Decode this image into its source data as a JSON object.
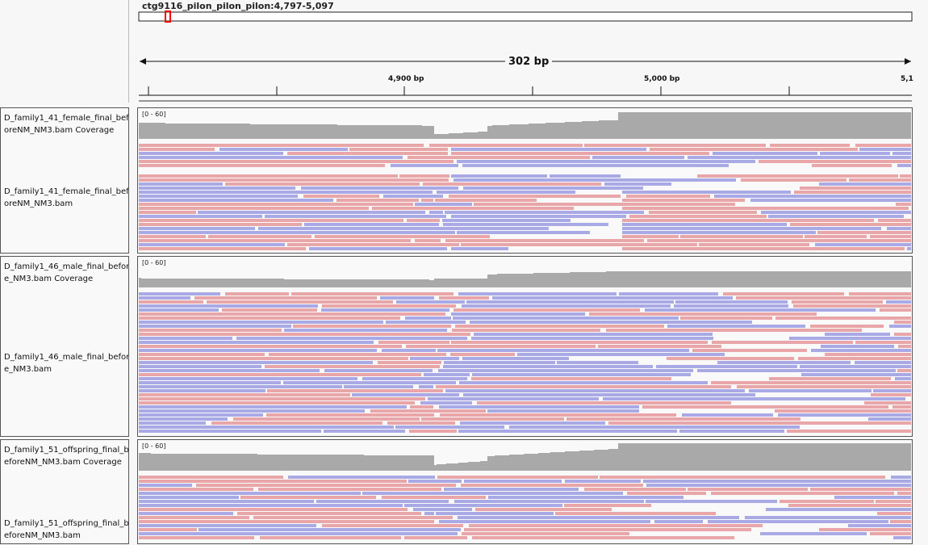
{
  "header": {
    "locus": "ctg9116_pilon_pilon_pilon:4,797-5,097",
    "span_label": "302 bp",
    "ticks": [
      "4,900 bp",
      "5,000 bp",
      "5,1"
    ]
  },
  "tracks": [
    {
      "coverage_label": "D_family1_41_female_final_beforeNM_NM3.bam Coverage",
      "alignment_label": "D_family1_41_female_final_beforeNM_NM3.bam",
      "data_range": "[0 - 60]"
    },
    {
      "coverage_label": "D_family1_46_male_final_before_NM3.bam Coverage",
      "alignment_label": "D_family1_46_male_final_before_NM3.bam",
      "data_range": "[0 - 60]"
    },
    {
      "coverage_label": "D_family1_51_offspring_final_beforeNM_NM3.bam Coverage",
      "alignment_label": "D_family1_51_offspring_final_beforeNM_NM3.bam",
      "data_range": "[0 - 60]"
    }
  ],
  "colors": {
    "coverage": "#a9a9a9",
    "read_forward": "#e8a6a9",
    "read_reverse": "#a9a9e6",
    "panel_bg": "#f9f9f9",
    "border": "#555555"
  }
}
